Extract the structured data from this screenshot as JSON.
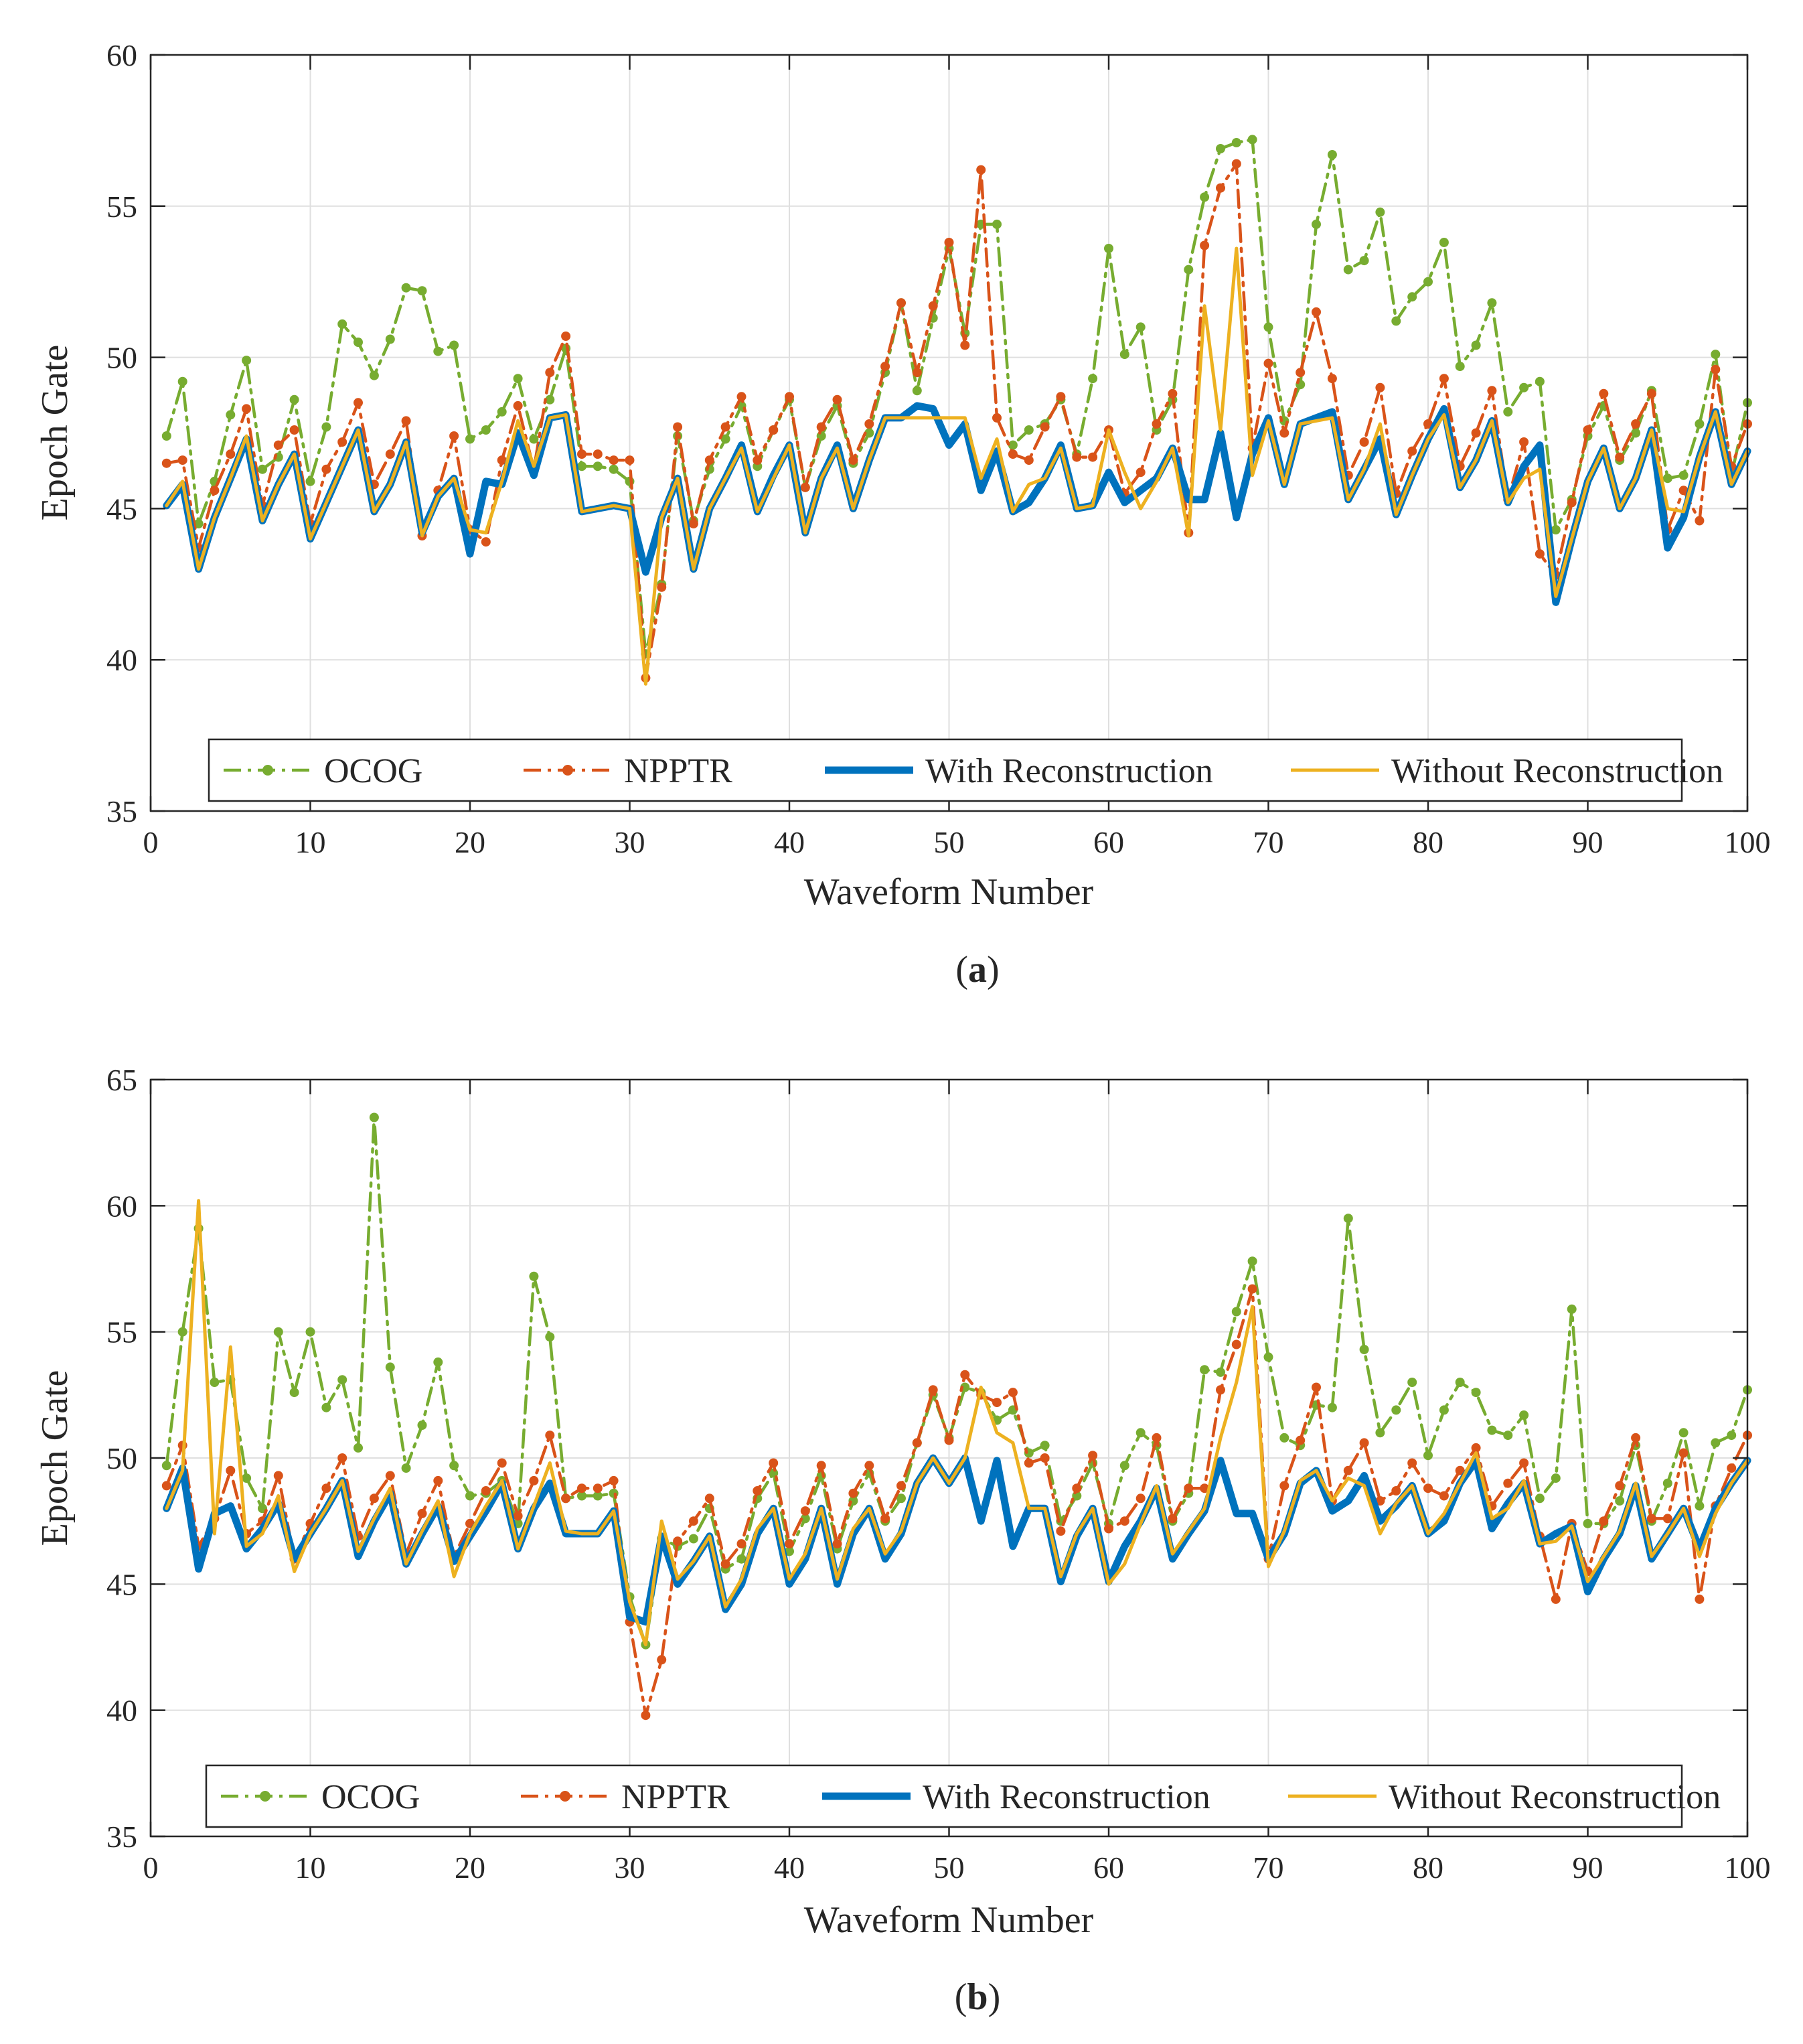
{
  "chart_data": [
    {
      "type": "line",
      "panel_label": "(a)",
      "panel_letter": "a",
      "xlabel": "Waveform Number",
      "ylabel": "Epoch Gate",
      "xlim": [
        0,
        100
      ],
      "ylim": [
        35,
        60
      ],
      "xticks": [
        0,
        10,
        20,
        30,
        40,
        50,
        60,
        70,
        80,
        90,
        100
      ],
      "yticks": [
        35,
        40,
        45,
        50,
        55,
        60
      ],
      "grid": true,
      "legend_position": "bottom",
      "x": [
        1,
        2,
        3,
        4,
        5,
        6,
        7,
        8,
        9,
        10,
        11,
        12,
        13,
        14,
        15,
        16,
        17,
        18,
        19,
        20,
        21,
        22,
        23,
        24,
        25,
        26,
        27,
        28,
        29,
        30,
        31,
        32,
        33,
        34,
        35,
        36,
        37,
        38,
        39,
        40,
        41,
        42,
        43,
        44,
        45,
        46,
        47,
        48,
        49,
        50,
        51,
        52,
        53,
        54,
        55,
        56,
        57,
        58,
        59,
        60,
        61,
        62,
        63,
        64,
        65,
        66,
        67,
        68,
        69,
        70,
        71,
        72,
        73,
        74,
        75,
        76,
        77,
        78,
        79,
        80,
        81,
        82,
        83,
        84,
        85,
        86,
        87,
        88,
        89,
        90,
        91,
        92,
        93,
        94,
        95,
        96,
        97,
        98,
        99,
        100
      ],
      "series": [
        {
          "name": "OCOG",
          "color": "#77ac30",
          "style": "dashdot-dot",
          "values": [
            47.4,
            49.2,
            44.5,
            45.9,
            48.1,
            49.9,
            46.3,
            46.7,
            48.6,
            45.9,
            47.7,
            51.1,
            50.5,
            49.4,
            50.6,
            52.3,
            52.2,
            50.2,
            50.4,
            47.3,
            47.6,
            48.2,
            49.3,
            47.3,
            48.6,
            50.3,
            46.4,
            46.4,
            46.3,
            45.9,
            40.2,
            42.5,
            47.4,
            44.6,
            46.3,
            47.3,
            48.4,
            46.4,
            47.6,
            48.6,
            45.7,
            47.4,
            48.4,
            46.5,
            47.5,
            49.5,
            51.8,
            48.9,
            51.3,
            53.6,
            50.8,
            54.4,
            54.4,
            47.1,
            47.6,
            47.8,
            48.6,
            46.8,
            49.3,
            53.6,
            50.1,
            51.0,
            47.6,
            48.6,
            52.9,
            55.3,
            56.9,
            57.1,
            57.2,
            51.0,
            47.9,
            49.1,
            54.4,
            56.7,
            52.9,
            53.2,
            54.8,
            51.2,
            52.0,
            52.5,
            53.8,
            49.7,
            50.4,
            51.8,
            48.2,
            49.0,
            49.2,
            44.3,
            45.3,
            47.4,
            48.4,
            46.6,
            47.5,
            48.9,
            46.0,
            46.1,
            47.8,
            50.1,
            46.1,
            48.5
          ]
        },
        {
          "name": "NPPTR",
          "color": "#d95319",
          "style": "dashdot-dot",
          "values": [
            46.5,
            46.6,
            43.7,
            45.6,
            46.8,
            48.3,
            45.1,
            47.1,
            47.6,
            44.5,
            46.3,
            47.2,
            48.5,
            45.8,
            46.8,
            47.9,
            44.1,
            45.6,
            47.4,
            44.3,
            43.9,
            46.6,
            48.4,
            46.3,
            49.5,
            50.7,
            46.8,
            46.8,
            46.6,
            46.6,
            39.4,
            42.4,
            47.7,
            44.5,
            46.6,
            47.7,
            48.7,
            46.6,
            47.6,
            48.7,
            45.7,
            47.7,
            48.6,
            46.6,
            47.8,
            49.7,
            51.8,
            49.5,
            51.7,
            53.8,
            50.4,
            56.2,
            48.0,
            46.8,
            46.6,
            47.7,
            48.7,
            46.7,
            46.7,
            47.6,
            45.5,
            46.2,
            47.8,
            48.8,
            44.2,
            53.7,
            55.6,
            56.4,
            47.0,
            49.8,
            47.5,
            49.5,
            51.5,
            49.3,
            46.1,
            47.2,
            49.0,
            45.5,
            46.9,
            47.8,
            49.3,
            46.4,
            47.5,
            48.9,
            45.3,
            47.2,
            43.5,
            42.8,
            45.2,
            47.6,
            48.8,
            46.7,
            47.8,
            48.8,
            44.3,
            45.6,
            44.6,
            49.6,
            46.4,
            47.8
          ]
        },
        {
          "name": "With Reconstruction",
          "color": "#0072bd",
          "style": "solid-thick",
          "values": [
            45.1,
            45.8,
            43.0,
            44.7,
            46.0,
            47.3,
            44.6,
            45.8,
            46.8,
            44.0,
            45.2,
            46.4,
            47.6,
            44.9,
            45.8,
            47.2,
            44.2,
            45.4,
            46.0,
            43.5,
            45.9,
            45.8,
            47.5,
            46.1,
            48.0,
            48.1,
            44.9,
            45.0,
            45.1,
            45.0,
            42.9,
            44.7,
            46.0,
            43.0,
            45.0,
            46.0,
            47.1,
            44.9,
            46.1,
            47.1,
            44.2,
            46.0,
            47.1,
            45.0,
            46.6,
            48.0,
            48.0,
            48.4,
            48.3,
            47.1,
            47.8,
            45.6,
            46.9,
            44.9,
            45.2,
            46.0,
            47.1,
            45.0,
            45.1,
            46.2,
            45.2,
            45.6,
            46.0,
            47.0,
            45.3,
            45.3,
            47.5,
            44.7,
            46.8,
            48.0,
            45.8,
            47.8,
            48.0,
            48.2,
            45.3,
            46.3,
            47.3,
            44.8,
            46.1,
            47.3,
            48.3,
            45.7,
            46.6,
            47.9,
            45.2,
            46.4,
            47.1,
            41.9,
            44.0,
            45.9,
            47.0,
            45.0,
            46.0,
            47.6,
            43.7,
            44.7,
            46.7,
            48.2,
            45.8,
            46.9
          ]
        },
        {
          "name": "Without Reconstruction",
          "color": "#edb120",
          "style": "solid",
          "values": [
            45.1,
            45.9,
            43.0,
            44.7,
            46.0,
            47.4,
            44.6,
            45.8,
            46.8,
            44.0,
            45.2,
            46.4,
            47.6,
            44.9,
            45.8,
            47.2,
            44.1,
            45.4,
            46.0,
            44.3,
            44.2,
            45.9,
            47.9,
            46.4,
            48.0,
            48.1,
            44.9,
            45.0,
            45.1,
            45.0,
            39.2,
            44.7,
            46.0,
            43.0,
            45.0,
            46.0,
            47.0,
            44.9,
            46.0,
            47.1,
            44.2,
            46.0,
            47.0,
            45.0,
            46.6,
            48.0,
            48.0,
            48.0,
            48.0,
            48.0,
            48.0,
            46.0,
            47.3,
            44.9,
            45.8,
            46.0,
            47.0,
            45.0,
            45.1,
            47.6,
            46.2,
            45.0,
            45.9,
            47.0,
            44.1,
            51.7,
            47.6,
            53.6,
            46.1,
            47.9,
            45.8,
            47.8,
            47.9,
            48.0,
            45.3,
            46.3,
            47.8,
            44.8,
            46.1,
            47.3,
            48.1,
            45.7,
            46.6,
            47.9,
            45.2,
            46.0,
            46.3,
            42.1,
            44.0,
            45.9,
            47.0,
            45.0,
            46.0,
            47.6,
            45.0,
            44.9,
            46.7,
            48.2,
            45.8,
            46.9
          ]
        }
      ]
    },
    {
      "type": "line",
      "panel_label": "(b)",
      "panel_letter": "b",
      "xlabel": "Waveform Number",
      "ylabel": "Epoch Gate",
      "xlim": [
        0,
        100
      ],
      "ylim": [
        35,
        65
      ],
      "xticks": [
        0,
        10,
        20,
        30,
        40,
        50,
        60,
        70,
        80,
        90,
        100
      ],
      "yticks": [
        35,
        40,
        45,
        50,
        55,
        60,
        65
      ],
      "grid": true,
      "legend_position": "bottom",
      "x": [
        1,
        2,
        3,
        4,
        5,
        6,
        7,
        8,
        9,
        10,
        11,
        12,
        13,
        14,
        15,
        16,
        17,
        18,
        19,
        20,
        21,
        22,
        23,
        24,
        25,
        26,
        27,
        28,
        29,
        30,
        31,
        32,
        33,
        34,
        35,
        36,
        37,
        38,
        39,
        40,
        41,
        42,
        43,
        44,
        45,
        46,
        47,
        48,
        49,
        50,
        51,
        52,
        53,
        54,
        55,
        56,
        57,
        58,
        59,
        60,
        61,
        62,
        63,
        64,
        65,
        66,
        67,
        68,
        69,
        70,
        71,
        72,
        73,
        74,
        75,
        76,
        77,
        78,
        79,
        80,
        81,
        82,
        83,
        84,
        85,
        86,
        87,
        88,
        89,
        90,
        91,
        92,
        93,
        94,
        95,
        96,
        97,
        98,
        99,
        100
      ],
      "series": [
        {
          "name": "OCOG",
          "color": "#77ac30",
          "style": "dashdot-dot",
          "values": [
            49.7,
            55.0,
            59.1,
            53.0,
            53.1,
            49.2,
            48.0,
            55.0,
            52.6,
            55.0,
            52.0,
            53.1,
            50.4,
            63.5,
            53.6,
            49.6,
            51.3,
            53.8,
            49.7,
            48.5,
            48.6,
            49.1,
            47.4,
            57.2,
            54.8,
            48.4,
            48.5,
            48.5,
            48.6,
            44.5,
            42.6,
            46.8,
            46.5,
            46.8,
            48.0,
            45.6,
            46.0,
            48.4,
            49.4,
            46.3,
            47.6,
            49.3,
            46.4,
            48.3,
            49.4,
            47.5,
            48.4,
            50.6,
            52.5,
            50.8,
            52.8,
            52.6,
            51.5,
            51.9,
            50.2,
            50.5,
            47.5,
            48.5,
            49.8,
            47.4,
            49.7,
            51.0,
            50.5,
            47.5,
            48.6,
            53.5,
            53.4,
            55.8,
            57.8,
            54.0,
            50.8,
            50.5,
            52.1,
            52.0,
            59.5,
            54.3,
            51.0,
            51.9,
            53.0,
            50.1,
            51.9,
            53.0,
            52.6,
            51.1,
            50.9,
            51.7,
            48.4,
            49.2,
            55.9,
            47.4,
            47.4,
            48.3,
            50.5,
            47.5,
            49.0,
            51.0,
            48.1,
            50.6,
            50.9,
            52.7
          ]
        },
        {
          "name": "NPPTR",
          "color": "#d95319",
          "style": "dashdot-dot",
          "values": [
            48.9,
            50.5,
            46.5,
            47.6,
            49.5,
            47.0,
            47.5,
            49.3,
            46.0,
            47.4,
            48.8,
            50.0,
            46.9,
            48.4,
            49.3,
            46.2,
            47.8,
            49.1,
            46.1,
            47.4,
            48.7,
            49.8,
            47.7,
            49.1,
            50.9,
            48.4,
            48.8,
            48.8,
            49.1,
            43.5,
            39.8,
            42.0,
            46.7,
            47.5,
            48.4,
            45.8,
            46.6,
            48.7,
            49.8,
            46.6,
            47.9,
            49.7,
            46.6,
            48.6,
            49.7,
            47.6,
            48.9,
            50.6,
            52.7,
            50.7,
            53.3,
            52.5,
            52.2,
            52.6,
            49.8,
            50.0,
            47.1,
            48.8,
            50.1,
            47.2,
            47.5,
            48.4,
            50.8,
            47.6,
            48.8,
            48.8,
            52.7,
            54.5,
            56.7,
            46.0,
            48.9,
            50.7,
            52.8,
            48.3,
            49.5,
            50.6,
            48.3,
            48.7,
            49.8,
            48.8,
            48.5,
            49.5,
            50.4,
            48.1,
            49.0,
            49.8,
            46.9,
            44.4,
            47.4,
            45.5,
            47.5,
            48.9,
            50.8,
            47.6,
            47.6,
            50.2,
            44.4,
            48.1,
            49.6,
            50.9
          ]
        },
        {
          "name": "With Reconstruction",
          "color": "#0072bd",
          "style": "solid-thick",
          "values": [
            48.0,
            49.6,
            45.6,
            47.8,
            48.1,
            46.4,
            47.2,
            48.2,
            46.0,
            47.0,
            48.0,
            49.1,
            46.1,
            47.5,
            48.6,
            45.8,
            47.0,
            48.1,
            45.9,
            46.9,
            47.9,
            49.0,
            46.4,
            48.0,
            49.0,
            47.0,
            47.0,
            47.0,
            47.9,
            43.7,
            43.5,
            46.9,
            45.0,
            45.9,
            46.9,
            44.0,
            45.0,
            47.0,
            48.0,
            45.0,
            46.0,
            48.0,
            45.0,
            47.0,
            48.0,
            46.0,
            47.0,
            49.0,
            50.0,
            49.0,
            50.0,
            47.5,
            49.9,
            46.5,
            48.0,
            48.0,
            45.1,
            46.9,
            48.0,
            45.1,
            46.5,
            47.5,
            48.8,
            46.0,
            47.0,
            47.9,
            49.9,
            47.8,
            47.8,
            46.0,
            47.0,
            49.0,
            49.5,
            47.9,
            48.3,
            49.3,
            47.5,
            48.1,
            48.9,
            47.0,
            47.5,
            49.0,
            49.9,
            47.2,
            48.2,
            49.0,
            46.6,
            47.0,
            47.3,
            44.7,
            46.0,
            47.0,
            48.9,
            46.0,
            47.0,
            48.0,
            46.4,
            48.0,
            49.0,
            49.9
          ]
        },
        {
          "name": "Without Reconstruction",
          "color": "#edb120",
          "style": "solid",
          "values": [
            48.0,
            49.5,
            60.2,
            47.0,
            54.4,
            46.5,
            47.0,
            48.5,
            45.5,
            47.0,
            48.0,
            49.1,
            46.3,
            47.6,
            48.8,
            45.8,
            47.1,
            48.3,
            45.3,
            47.0,
            48.1,
            49.1,
            46.4,
            48.1,
            49.8,
            47.1,
            47.0,
            47.0,
            47.9,
            44.3,
            42.6,
            47.5,
            45.2,
            45.9,
            46.9,
            44.1,
            45.2,
            47.2,
            48.0,
            45.2,
            46.2,
            48.0,
            45.2,
            47.2,
            48.0,
            46.2,
            47.1,
            49.0,
            50.0,
            49.0,
            50.0,
            52.8,
            51.0,
            50.6,
            48.0,
            48.0,
            45.3,
            47.0,
            48.0,
            45.0,
            45.8,
            47.4,
            48.9,
            46.2,
            47.1,
            48.0,
            50.8,
            53.0,
            56.0,
            45.7,
            47.1,
            49.1,
            49.5,
            48.3,
            49.2,
            48.9,
            47.0,
            48.2,
            48.9,
            47.0,
            47.8,
            49.0,
            50.2,
            47.6,
            48.0,
            49.1,
            46.6,
            46.7,
            47.3,
            45.1,
            46.1,
            47.1,
            49.0,
            46.1,
            47.0,
            48.0,
            46.1,
            47.8,
            49.0,
            49.9
          ]
        }
      ]
    }
  ]
}
